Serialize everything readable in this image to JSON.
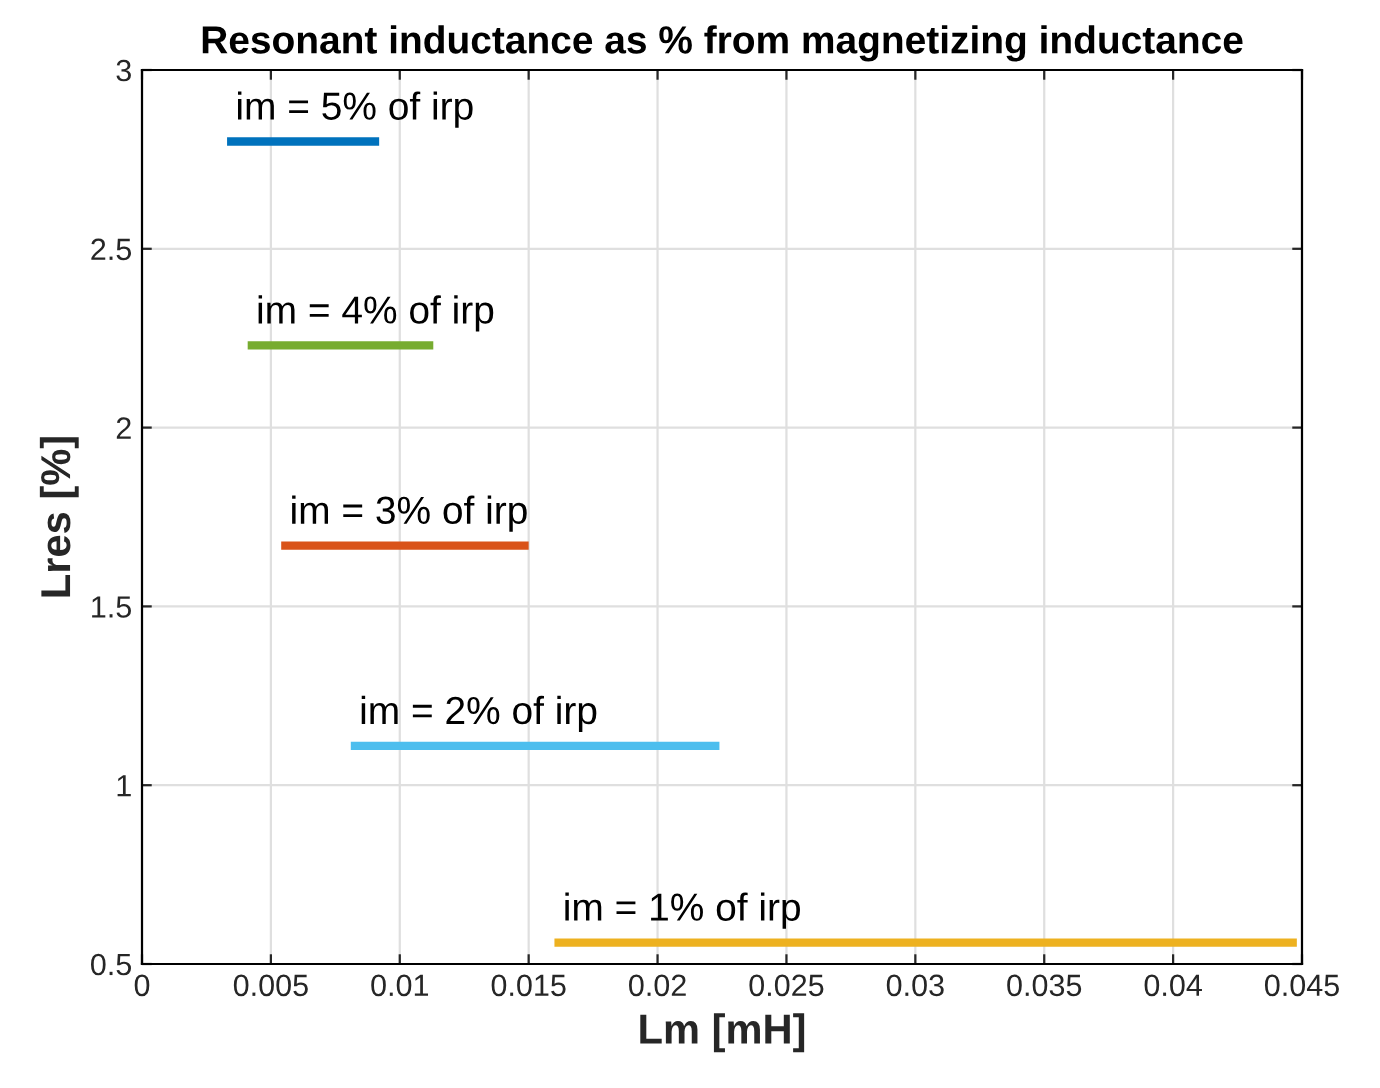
{
  "chart_data": {
    "type": "line",
    "title": "Resonant inductance as % from magnetizing inductance",
    "xlabel": "Lm [mH]",
    "ylabel": "Lres [%]",
    "xlim": [
      0,
      0.045
    ],
    "xticks": [
      0,
      0.005,
      0.01,
      0.015,
      0.02,
      0.025,
      0.03,
      0.035,
      0.04,
      0.045
    ],
    "ylim": [
      0.5,
      3
    ],
    "yticks": [
      0.5,
      1,
      1.5,
      2,
      2.5,
      3
    ],
    "grid": true,
    "series": [
      {
        "name": "im = 5% of irp",
        "color": "#0072bd",
        "x": [
          0.0033,
          0.0092
        ],
        "values": [
          2.8,
          2.8
        ]
      },
      {
        "name": "im = 4% of irp",
        "color": "#77ac30",
        "x": [
          0.0041,
          0.0113
        ],
        "values": [
          2.23,
          2.23
        ]
      },
      {
        "name": "im = 3% of irp",
        "color": "#d95319",
        "x": [
          0.0054,
          0.015
        ],
        "values": [
          1.67,
          1.67
        ]
      },
      {
        "name": "im = 2% of irp",
        "color": "#4dbeee",
        "x": [
          0.0081,
          0.0224
        ],
        "values": [
          1.11,
          1.11
        ]
      },
      {
        "name": "im = 1% of irp",
        "color": "#edb120",
        "x": [
          0.016,
          0.0448
        ],
        "values": [
          0.56,
          0.56
        ]
      }
    ]
  }
}
